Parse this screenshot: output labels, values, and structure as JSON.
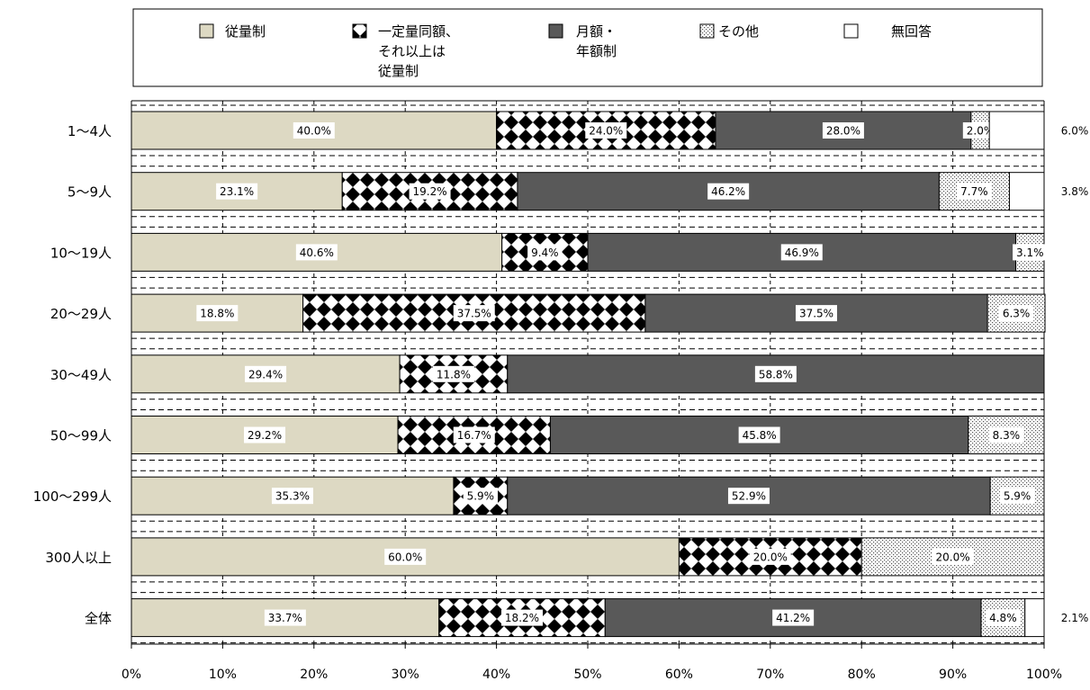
{
  "chart_data": {
    "type": "bar",
    "orientation": "horizontal",
    "stacked": true,
    "categories": [
      "1～4人",
      "5～9人",
      "10～19人",
      "20～29人",
      "30～49人",
      "50～99人",
      "100～299人",
      "300人以上",
      "全体"
    ],
    "series": [
      {
        "name": "従量制",
        "legend_lines": [
          "従量制"
        ],
        "color": "#ddd9c3",
        "pattern": "solid",
        "values": [
          40.0,
          23.1,
          40.6,
          18.8,
          29.4,
          29.2,
          35.3,
          60.0,
          33.7
        ],
        "labels": [
          "40.0%",
          "23.1%",
          "40.6%",
          "18.8%",
          "29.4%",
          "29.2%",
          "35.3%",
          "60.0%",
          "33.7%"
        ]
      },
      {
        "name": "一定量同額、それ以上は従量制",
        "legend_lines": [
          "一定量同額、",
          "それ以上は",
          "従量制"
        ],
        "color": "#000000",
        "pattern": "diamonds",
        "values": [
          24.0,
          19.2,
          9.4,
          37.5,
          11.8,
          16.7,
          5.9,
          20.0,
          18.2
        ],
        "labels": [
          "24.0%",
          "19.2%",
          "9.4%",
          "37.5%",
          "11.8%",
          "16.7%",
          "5.9%",
          "20.0%",
          "18.2%"
        ]
      },
      {
        "name": "月額・年額制",
        "legend_lines": [
          "月額・",
          "年額制"
        ],
        "color": "#595959",
        "pattern": "solid",
        "values": [
          28.0,
          46.2,
          46.9,
          37.5,
          58.8,
          45.8,
          52.9,
          0,
          41.2
        ],
        "labels": [
          "28.0%",
          "46.2%",
          "46.9%",
          "37.5%",
          "58.8%",
          "45.8%",
          "52.9%",
          "",
          "41.2%"
        ]
      },
      {
        "name": "その他",
        "legend_lines": [
          "その他"
        ],
        "color": "#ffffff",
        "pattern": "dots",
        "values": [
          2.0,
          7.7,
          3.1,
          6.3,
          0,
          8.3,
          5.9,
          20.0,
          4.8
        ],
        "labels": [
          "2.0%",
          "7.7%",
          "3.1%",
          "6.3%",
          "",
          "8.3%",
          "5.9%",
          "20.0%",
          "4.8%"
        ]
      },
      {
        "name": "無回答",
        "legend_lines": [
          "無回答"
        ],
        "color": "#ffffff",
        "pattern": "solid",
        "values": [
          6.0,
          3.8,
          0,
          0,
          0,
          0,
          0,
          0,
          2.1
        ],
        "labels": [
          "6.0%",
          "3.8%",
          "",
          "",
          "",
          "",
          "",
          "",
          "2.1%"
        ]
      }
    ],
    "x_ticks": [
      "0%",
      "10%",
      "20%",
      "30%",
      "40%",
      "50%",
      "60%",
      "70%",
      "80%",
      "90%",
      "100%"
    ],
    "xlim": [
      0,
      100
    ],
    "legend_position": "top",
    "grid": true
  }
}
